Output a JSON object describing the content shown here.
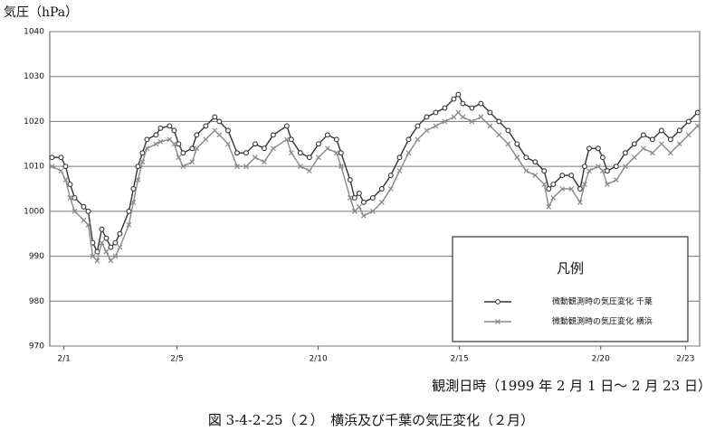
{
  "chart_data": {
    "type": "line",
    "y_label": "気圧（hPa）",
    "x_label": "観測日時（1999 年 2 月 1 日～ 2 月 23 日）",
    "caption": "図 3-4-2-25（２）　横浜及び千葉の気圧変化（２月）",
    "legend_title": "凡例",
    "legend_position": "lower right",
    "grid": true,
    "xlim": [
      0.5,
      23.5
    ],
    "xticks": [
      {
        "value": 1,
        "label": "2/1"
      },
      {
        "value": 5,
        "label": "2/5"
      },
      {
        "value": 10,
        "label": "2/10"
      },
      {
        "value": 15,
        "label": "2/15"
      },
      {
        "value": 20,
        "label": "2/20"
      },
      {
        "value": 23,
        "label": "2/23"
      }
    ],
    "ylim": [
      970,
      1040
    ],
    "yticks": [
      970,
      980,
      990,
      1000,
      1010,
      1020,
      1030,
      1040
    ],
    "x": [
      0.58,
      0.9,
      1.06,
      1.22,
      1.38,
      1.7,
      1.86,
      2.02,
      2.18,
      2.34,
      2.5,
      2.66,
      2.82,
      2.98,
      3.3,
      3.46,
      3.62,
      3.78,
      3.94,
      4.26,
      4.42,
      4.74,
      4.9,
      5.06,
      5.22,
      5.54,
      5.7,
      6.02,
      6.34,
      6.5,
      6.81,
      7.13,
      7.45,
      7.77,
      8.09,
      8.41,
      8.89,
      9.05,
      9.37,
      9.69,
      10.01,
      10.33,
      10.65,
      10.81,
      11.13,
      11.29,
      11.45,
      11.61,
      11.93,
      12.25,
      12.57,
      12.88,
      13.2,
      13.52,
      13.84,
      14.16,
      14.48,
      14.8,
      14.96,
      15.12,
      15.44,
      15.76,
      16.08,
      16.4,
      16.72,
      17.04,
      17.36,
      17.68,
      18.0,
      18.16,
      18.32,
      18.64,
      18.96,
      19.27,
      19.43,
      19.59,
      19.91,
      20.07,
      20.23,
      20.55,
      20.87,
      21.19,
      21.51,
      21.83,
      22.15,
      22.47,
      22.79,
      23.11,
      23.43
    ],
    "series": [
      {
        "name": "微動観測時の気圧変化 千葉",
        "color": "#333333",
        "marker": "o",
        "values": [
          1012,
          1012,
          1010,
          1006,
          1003,
          1001,
          1000,
          993,
          991,
          996,
          994,
          992,
          993,
          995,
          1000,
          1005,
          1010,
          1013,
          1016,
          1017,
          1018.5,
          1019,
          1018,
          1015,
          1013,
          1014,
          1017,
          1019,
          1021,
          1020,
          1018,
          1013,
          1013,
          1015,
          1014,
          1017,
          1019,
          1016,
          1013,
          1012,
          1015,
          1017,
          1016,
          1013,
          1007,
          1003,
          1004,
          1002,
          1003,
          1005,
          1008,
          1012,
          1016,
          1019,
          1021,
          1022,
          1023,
          1025,
          1026,
          1024,
          1023,
          1024,
          1022,
          1020,
          1018,
          1015,
          1012,
          1011,
          1009,
          1005,
          1006,
          1008,
          1008,
          1005,
          1010,
          1014,
          1014,
          1012,
          1009,
          1010,
          1013,
          1015,
          1017,
          1016,
          1018,
          1016,
          1018,
          1020,
          1022
        ]
      },
      {
        "name": "微動観測時の気圧変化 横浜",
        "color": "#888888",
        "marker": "x",
        "values": [
          1010,
          1009,
          1007,
          1003,
          1000,
          998,
          997,
          990,
          989,
          993,
          991,
          989,
          990,
          992,
          997,
          1002,
          1007,
          1011,
          1014,
          1015,
          1015.5,
          1016,
          1015,
          1012,
          1010,
          1011,
          1014,
          1016,
          1018,
          1017,
          1015,
          1010,
          1010,
          1012,
          1011,
          1014,
          1016,
          1013,
          1010,
          1009,
          1012,
          1014,
          1013,
          1010,
          1003,
          1000,
          1001,
          999,
          1000,
          1002,
          1005,
          1009,
          1013,
          1016,
          1018,
          1019,
          1020,
          1021,
          1022,
          1021,
          1020,
          1021,
          1019,
          1017,
          1015,
          1012,
          1009,
          1008,
          1006,
          1001,
          1003,
          1005,
          1005,
          1002,
          1006,
          1009,
          1010,
          1009,
          1006,
          1007,
          1010,
          1012,
          1014,
          1013,
          1015,
          1013,
          1015,
          1017,
          1019
        ]
      }
    ]
  }
}
